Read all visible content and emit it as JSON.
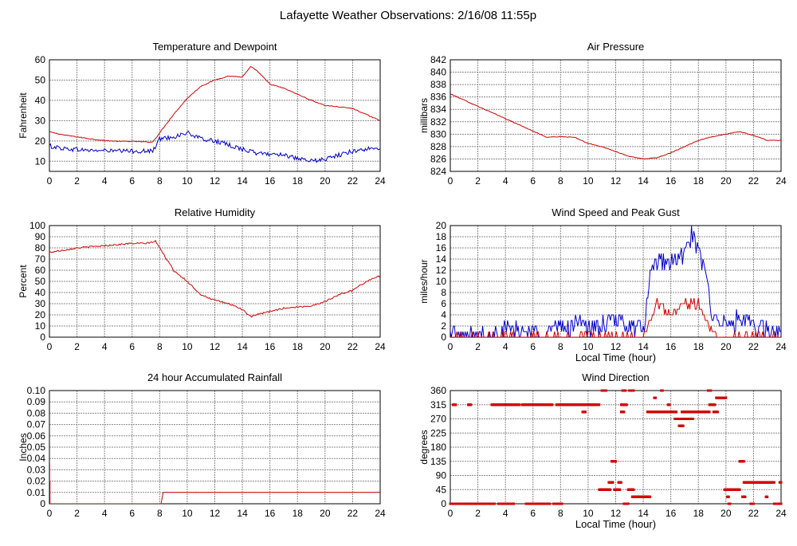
{
  "page_title": "Lafayette Weather Observations: 2/16/08 11:55p",
  "colors": {
    "red": "#d40000",
    "blue": "#0000cc",
    "grid": "#888888",
    "frame": "#000000"
  },
  "chart_data": [
    {
      "id": "temp",
      "type": "line",
      "title": "Temperature and Dewpoint",
      "xlabel": "",
      "ylabel": "Fahrenheit",
      "xlim": [
        0,
        24
      ],
      "ylim": [
        5,
        60
      ],
      "xticks": [
        0,
        2,
        4,
        6,
        8,
        10,
        12,
        14,
        16,
        18,
        20,
        22,
        24
      ],
      "yticks": [
        10,
        20,
        30,
        40,
        50,
        60
      ],
      "series": [
        {
          "color": "red",
          "jitter": 0.2,
          "points": [
            [
              0,
              24.5
            ],
            [
              1,
              23
            ],
            [
              2,
              22
            ],
            [
              3,
              21
            ],
            [
              4,
              20.2
            ],
            [
              5,
              19.8
            ],
            [
              6,
              19.8
            ],
            [
              7,
              19.5
            ],
            [
              7.5,
              19.5
            ],
            [
              8,
              24
            ],
            [
              9,
              33
            ],
            [
              10,
              41
            ],
            [
              11,
              47
            ],
            [
              12,
              50
            ],
            [
              13,
              52
            ],
            [
              14,
              51.5
            ],
            [
              14.6,
              56.5
            ],
            [
              15,
              55
            ],
            [
              16,
              48
            ],
            [
              17,
              46
            ],
            [
              18,
              43
            ],
            [
              19,
              40
            ],
            [
              20,
              37.5
            ],
            [
              21,
              36.8
            ],
            [
              22,
              36
            ],
            [
              23,
              33
            ],
            [
              24,
              30
            ]
          ]
        },
        {
          "color": "blue",
          "jitter": 1.1,
          "points": [
            [
              0,
              17.5
            ],
            [
              1,
              16.3
            ],
            [
              2,
              15.8
            ],
            [
              3,
              15.3
            ],
            [
              4,
              15.3
            ],
            [
              5,
              15
            ],
            [
              6,
              15
            ],
            [
              7,
              15
            ],
            [
              7.5,
              15
            ],
            [
              8,
              21
            ],
            [
              9,
              22
            ],
            [
              10,
              24
            ],
            [
              11,
              21
            ],
            [
              12,
              20
            ],
            [
              13,
              18
            ],
            [
              14,
              16
            ],
            [
              15,
              14
            ],
            [
              16,
              13.5
            ],
            [
              17,
              13.5
            ],
            [
              18,
              11
            ],
            [
              19,
              10
            ],
            [
              20,
              11
            ],
            [
              21,
              13
            ],
            [
              22,
              15
            ],
            [
              23,
              16
            ],
            [
              24,
              16
            ]
          ]
        }
      ]
    },
    {
      "id": "pressure",
      "type": "line",
      "title": "Air Pressure",
      "xlabel": "",
      "ylabel": "millibars",
      "xlim": [
        0,
        24
      ],
      "ylim": [
        824,
        842
      ],
      "xticks": [
        0,
        2,
        4,
        6,
        8,
        10,
        12,
        14,
        16,
        18,
        20,
        22,
        24
      ],
      "yticks": [
        824,
        826,
        828,
        830,
        832,
        834,
        836,
        838,
        840,
        842
      ],
      "series": [
        {
          "color": "red",
          "jitter": 0.05,
          "points": [
            [
              0,
              836.5
            ],
            [
              1,
              835.5
            ],
            [
              2,
              834.5
            ],
            [
              3,
              833.5
            ],
            [
              4,
              832.5
            ],
            [
              5,
              831.5
            ],
            [
              6,
              830.5
            ],
            [
              7,
              829.5
            ],
            [
              8,
              829.6
            ],
            [
              9,
              829.5
            ],
            [
              10,
              828.5
            ],
            [
              11,
              828
            ],
            [
              12,
              827.2
            ],
            [
              13,
              826.4
            ],
            [
              14,
              826
            ],
            [
              15,
              826.2
            ],
            [
              16,
              827
            ],
            [
              17,
              828
            ],
            [
              18,
              829
            ],
            [
              19,
              829.6
            ],
            [
              20,
              830
            ],
            [
              21,
              830.4
            ],
            [
              22,
              829.8
            ],
            [
              23,
              829
            ],
            [
              24,
              829
            ]
          ]
        }
      ]
    },
    {
      "id": "humidity",
      "type": "line",
      "title": "Relative Humidity",
      "xlabel": "",
      "ylabel": "Percent",
      "xlim": [
        0,
        24
      ],
      "ylim": [
        0,
        100
      ],
      "xticks": [
        0,
        2,
        4,
        6,
        8,
        10,
        12,
        14,
        16,
        18,
        20,
        22,
        24
      ],
      "yticks": [
        0,
        10,
        20,
        30,
        40,
        50,
        60,
        70,
        80,
        90,
        100
      ],
      "series": [
        {
          "color": "red",
          "jitter": 0.7,
          "points": [
            [
              0,
              76
            ],
            [
              1,
              78
            ],
            [
              2,
              80
            ],
            [
              3,
              81
            ],
            [
              4,
              82
            ],
            [
              5,
              83
            ],
            [
              6,
              84
            ],
            [
              7,
              84
            ],
            [
              7.7,
              86
            ],
            [
              8,
              80
            ],
            [
              9,
              60
            ],
            [
              10,
              50
            ],
            [
              11,
              38
            ],
            [
              12,
              33
            ],
            [
              13,
              30
            ],
            [
              14,
              25
            ],
            [
              14.6,
              18
            ],
            [
              15,
              20
            ],
            [
              16,
              23
            ],
            [
              17,
              26
            ],
            [
              18,
              27
            ],
            [
              19,
              28
            ],
            [
              20,
              32
            ],
            [
              21,
              38
            ],
            [
              22,
              42
            ],
            [
              23,
              50
            ],
            [
              24,
              55
            ]
          ]
        }
      ]
    },
    {
      "id": "wind",
      "type": "line",
      "title": "Wind Speed and Peak Gust",
      "xlabel": "Local Time (hour)",
      "ylabel": "miles/hour",
      "xlim": [
        0,
        24
      ],
      "ylim": [
        0,
        20
      ],
      "xticks": [
        0,
        2,
        4,
        6,
        8,
        10,
        12,
        14,
        16,
        18,
        20,
        22,
        24
      ],
      "yticks": [
        0,
        2,
        4,
        6,
        8,
        10,
        12,
        14,
        16,
        18,
        20
      ],
      "series": [
        {
          "color": "blue",
          "jitter": 1.8,
          "points": [
            [
              0,
              0
            ],
            [
              0.3,
              1
            ],
            [
              0.6,
              0
            ],
            [
              1.4,
              0
            ],
            [
              1.5,
              1
            ],
            [
              1.7,
              0
            ],
            [
              3,
              0
            ],
            [
              3.2,
              2
            ],
            [
              4,
              1
            ],
            [
              5,
              1
            ],
            [
              6,
              1
            ],
            [
              7,
              1
            ],
            [
              8,
              2
            ],
            [
              9,
              2
            ],
            [
              9.5,
              4
            ],
            [
              10,
              1
            ],
            [
              11,
              2
            ],
            [
              12,
              3
            ],
            [
              13,
              2
            ],
            [
              14,
              1
            ],
            [
              14.5,
              10
            ],
            [
              15,
              14
            ],
            [
              16,
              13
            ],
            [
              17,
              15
            ],
            [
              17.5,
              18
            ],
            [
              18,
              15
            ],
            [
              18.5,
              12
            ],
            [
              19,
              4
            ],
            [
              20,
              2
            ],
            [
              21,
              3
            ],
            [
              22,
              2
            ],
            [
              23,
              1
            ],
            [
              24,
              1
            ]
          ]
        },
        {
          "color": "red",
          "jitter": 0.7,
          "points": [
            [
              0,
              0
            ],
            [
              9,
              0
            ],
            [
              10,
              1
            ],
            [
              11,
              0
            ],
            [
              13,
              0
            ],
            [
              14,
              0
            ],
            [
              14.5,
              3
            ],
            [
              15,
              6
            ],
            [
              16,
              4
            ],
            [
              17,
              6
            ],
            [
              18,
              6
            ],
            [
              18.5,
              3
            ],
            [
              19,
              1
            ],
            [
              19.5,
              0
            ],
            [
              22,
              0
            ],
            [
              22.5,
              1
            ],
            [
              23,
              0
            ],
            [
              24,
              0
            ]
          ]
        }
      ]
    },
    {
      "id": "rain",
      "type": "line",
      "title": "24 hour Accumulated Rainfall",
      "xlabel": "",
      "ylabel": "Inches",
      "xlim": [
        0,
        24
      ],
      "ylim": [
        0,
        0.1
      ],
      "xticks": [
        0,
        2,
        4,
        6,
        8,
        10,
        12,
        14,
        16,
        18,
        20,
        22,
        24
      ],
      "yticks": [
        0,
        0.01,
        0.02,
        0.03,
        0.04,
        0.05,
        0.06,
        0.07,
        0.08,
        0.09,
        0.1
      ],
      "series": [
        {
          "color": "red",
          "jitter": 0,
          "points": [
            [
              0,
              0.035
            ],
            [
              0.02,
              0.035
            ],
            [
              0.02,
              0.02
            ],
            [
              0.04,
              0.02
            ],
            [
              0.04,
              0
            ],
            [
              8.1,
              0
            ],
            [
              8.25,
              0.01
            ],
            [
              24,
              0.01
            ]
          ]
        }
      ]
    },
    {
      "id": "direction",
      "type": "scatter",
      "title": "Wind Direction",
      "xlabel": "Local Time (hour)",
      "ylabel": "degrees",
      "xlim": [
        0,
        24
      ],
      "ylim": [
        0,
        360
      ],
      "xticks": [
        0,
        2,
        4,
        6,
        8,
        10,
        12,
        14,
        16,
        18,
        20,
        22,
        24
      ],
      "yticks": [
        0,
        45,
        90,
        135,
        180,
        225,
        270,
        315,
        360
      ],
      "segments": [
        [
          0,
          1.4,
          0
        ],
        [
          0.2,
          0.4,
          315
        ],
        [
          1.3,
          1.5,
          315
        ],
        [
          1.5,
          3.2,
          0
        ],
        [
          3.0,
          5.0,
          315
        ],
        [
          3.5,
          4.6,
          0
        ],
        [
          5.2,
          7.4,
          315
        ],
        [
          5.5,
          7.2,
          0
        ],
        [
          7.5,
          8.1,
          0
        ],
        [
          7.7,
          10.8,
          315
        ],
        [
          9.6,
          9.8,
          292
        ],
        [
          10.8,
          11.6,
          45
        ],
        [
          11.0,
          11.3,
          360
        ],
        [
          11.5,
          11.8,
          68
        ],
        [
          11.7,
          12.0,
          135
        ],
        [
          11.9,
          12.3,
          45
        ],
        [
          12.2,
          12.4,
          68
        ],
        [
          12.4,
          12.8,
          315
        ],
        [
          12.4,
          12.6,
          292
        ],
        [
          12.5,
          12.7,
          360
        ],
        [
          12.6,
          12.9,
          0
        ],
        [
          12.9,
          13.3,
          45
        ],
        [
          13.0,
          13.3,
          360
        ],
        [
          13.2,
          14.5,
          22
        ],
        [
          14.3,
          16.0,
          292
        ],
        [
          14.8,
          14.9,
          337
        ],
        [
          15.3,
          15.4,
          360
        ],
        [
          15.8,
          15.9,
          315
        ],
        [
          16.0,
          16.4,
          292
        ],
        [
          16.3,
          17.6,
          270
        ],
        [
          16.6,
          16.9,
          248
        ],
        [
          16.8,
          17.5,
          292
        ],
        [
          17.6,
          18.8,
          292
        ],
        [
          18.7,
          18.9,
          360
        ],
        [
          18.8,
          19.2,
          315
        ],
        [
          19.1,
          19.4,
          292
        ],
        [
          19.3,
          20.0,
          337
        ],
        [
          19.9,
          20.0,
          45
        ],
        [
          20.0,
          21.0,
          45
        ],
        [
          20.1,
          20.2,
          22
        ],
        [
          20.2,
          20.3,
          0
        ],
        [
          21.0,
          21.3,
          135
        ],
        [
          21.3,
          23.5,
          68
        ],
        [
          21.2,
          21.4,
          22
        ],
        [
          21.8,
          22.0,
          0
        ],
        [
          22.9,
          23.0,
          22
        ],
        [
          23.5,
          24.0,
          0
        ],
        [
          23.9,
          24.0,
          68
        ]
      ]
    }
  ]
}
